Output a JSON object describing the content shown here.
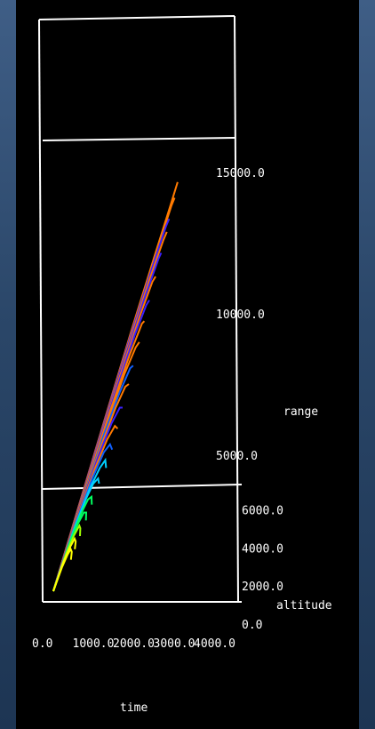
{
  "chart_data": {
    "type": "line",
    "title": "",
    "axes": {
      "range": {
        "label": "range",
        "ticks": [
          "5000.0",
          "10000.0",
          "15000.0"
        ],
        "range": [
          0,
          17000
        ]
      },
      "altitude": {
        "label": "altitude",
        "ticks": [
          "0.0",
          "2000.0",
          "4000.0",
          "6000.0"
        ],
        "range": [
          0,
          6500
        ]
      },
      "time": {
        "label": "time",
        "ticks": [
          "0.0",
          "1000.0",
          "2000.0",
          "3000.0",
          "4000.0"
        ],
        "range": [
          0,
          4600
        ]
      }
    },
    "grid": false,
    "legend": "none",
    "color_ramp": [
      "#ffff00",
      "#a0ff00",
      "#00ff60",
      "#00d0ff",
      "#1060ff",
      "#3a20ff",
      "#7a20c8",
      "#ff7a00"
    ],
    "trajectories": [
      {
        "color": "#ff7a00",
        "points": [
          [
            0,
            0
          ],
          [
            800,
            5200
          ],
          [
            1600,
            10000
          ],
          [
            2200,
            12800
          ],
          [
            2600,
            14600
          ],
          [
            2800,
            15600
          ]
        ]
      },
      {
        "color": "#ff7a00",
        "points": [
          [
            0,
            0
          ],
          [
            800,
            5000
          ],
          [
            1600,
            9600
          ],
          [
            2300,
            12800
          ],
          [
            2800,
            14700
          ],
          [
            3000,
            15000
          ]
        ]
      },
      {
        "color": "#3a20ff",
        "points": [
          [
            0,
            0
          ],
          [
            800,
            4900
          ],
          [
            1600,
            9400
          ],
          [
            2300,
            12300
          ],
          [
            2800,
            13900
          ],
          [
            3000,
            14200
          ]
        ]
      },
      {
        "color": "#ff7a00",
        "points": [
          [
            0,
            0
          ],
          [
            800,
            4700
          ],
          [
            1600,
            8900
          ],
          [
            2400,
            11900
          ],
          [
            3000,
            13400
          ],
          [
            3200,
            13700
          ]
        ]
      },
      {
        "color": "#3a20ff",
        "points": [
          [
            0,
            0
          ],
          [
            800,
            4500
          ],
          [
            1600,
            8400
          ],
          [
            2400,
            11200
          ],
          [
            3000,
            12700
          ],
          [
            3200,
            12900
          ]
        ]
      },
      {
        "color": "#ff7a00",
        "points": [
          [
            0,
            0
          ],
          [
            800,
            4300
          ],
          [
            1600,
            7900
          ],
          [
            2400,
            10500
          ],
          [
            3000,
            11800
          ],
          [
            3300,
            12000
          ]
        ]
      },
      {
        "color": "#3a20ff",
        "points": [
          [
            0,
            0
          ],
          [
            800,
            4100
          ],
          [
            1600,
            7400
          ],
          [
            2400,
            9800
          ],
          [
            3000,
            10900
          ],
          [
            3300,
            11100
          ]
        ]
      },
      {
        "color": "#ff7a00",
        "points": [
          [
            0,
            0
          ],
          [
            800,
            3900
          ],
          [
            1600,
            6900
          ],
          [
            2400,
            9000
          ],
          [
            3100,
            10200
          ],
          [
            3400,
            10300
          ]
        ]
      },
      {
        "color": "#ff7a00",
        "points": [
          [
            0,
            0
          ],
          [
            800,
            3700
          ],
          [
            1600,
            6400
          ],
          [
            2400,
            8300
          ],
          [
            3100,
            9300
          ],
          [
            3500,
            9500
          ]
        ]
      },
      {
        "color": "#1060ff",
        "points": [
          [
            0,
            0
          ],
          [
            800,
            3500
          ],
          [
            1600,
            6000
          ],
          [
            2400,
            7600
          ],
          [
            3100,
            8500
          ],
          [
            3500,
            8600
          ]
        ]
      },
      {
        "color": "#ff7a00",
        "points": [
          [
            0,
            0
          ],
          [
            800,
            3300
          ],
          [
            1600,
            5500
          ],
          [
            2400,
            7000
          ],
          [
            3100,
            7800
          ],
          [
            3600,
            7900
          ]
        ]
      },
      {
        "color": "#3a20ff",
        "points": [
          [
            0,
            0
          ],
          [
            800,
            3100
          ],
          [
            1600,
            5100
          ],
          [
            2400,
            6400
          ],
          [
            3100,
            7000
          ],
          [
            3600,
            7000
          ]
        ]
      },
      {
        "color": "#ff7a00",
        "points": [
          [
            0,
            0
          ],
          [
            800,
            2900
          ],
          [
            1600,
            4700
          ],
          [
            2400,
            5800
          ],
          [
            3100,
            6300
          ],
          [
            3700,
            6200
          ]
        ]
      },
      {
        "color": "#1060ff",
        "points": [
          [
            0,
            0
          ],
          [
            800,
            2700
          ],
          [
            1600,
            4300
          ],
          [
            2400,
            5300
          ],
          [
            3100,
            5600
          ],
          [
            3700,
            5400
          ]
        ]
      },
      {
        "color": "#00d0ff",
        "points": [
          [
            0,
            0
          ],
          [
            800,
            2500
          ],
          [
            1600,
            3900
          ],
          [
            2400,
            4700
          ],
          [
            3000,
            5000
          ],
          [
            3500,
            4700
          ]
        ]
      },
      {
        "color": "#00d0ff",
        "points": [
          [
            0,
            0
          ],
          [
            700,
            2200
          ],
          [
            1400,
            3500
          ],
          [
            2000,
            4100
          ],
          [
            2600,
            4300
          ],
          [
            3000,
            4100
          ]
        ]
      },
      {
        "color": "#00ff60",
        "points": [
          [
            0,
            0
          ],
          [
            700,
            2000
          ],
          [
            1300,
            3000
          ],
          [
            1800,
            3500
          ],
          [
            2300,
            3600
          ],
          [
            2700,
            3300
          ]
        ]
      },
      {
        "color": "#00ff60",
        "points": [
          [
            0,
            0
          ],
          [
            600,
            1700
          ],
          [
            1200,
            2600
          ],
          [
            1700,
            3000
          ],
          [
            2100,
            3000
          ],
          [
            2400,
            2700
          ]
        ]
      },
      {
        "color": "#a0ff00",
        "points": [
          [
            0,
            0
          ],
          [
            500,
            1400
          ],
          [
            1000,
            2100
          ],
          [
            1500,
            2500
          ],
          [
            1800,
            2400
          ],
          [
            2100,
            2100
          ]
        ]
      },
      {
        "color": "#ffff00",
        "points": [
          [
            0,
            0
          ],
          [
            400,
            1100
          ],
          [
            900,
            1700
          ],
          [
            1300,
            2000
          ],
          [
            1600,
            1900
          ],
          [
            1800,
            1600
          ]
        ]
      },
      {
        "color": "#ffff00",
        "points": [
          [
            0,
            0
          ],
          [
            400,
            900
          ],
          [
            800,
            1400
          ],
          [
            1100,
            1600
          ],
          [
            1400,
            1500
          ],
          [
            1600,
            1200
          ]
        ]
      }
    ]
  }
}
